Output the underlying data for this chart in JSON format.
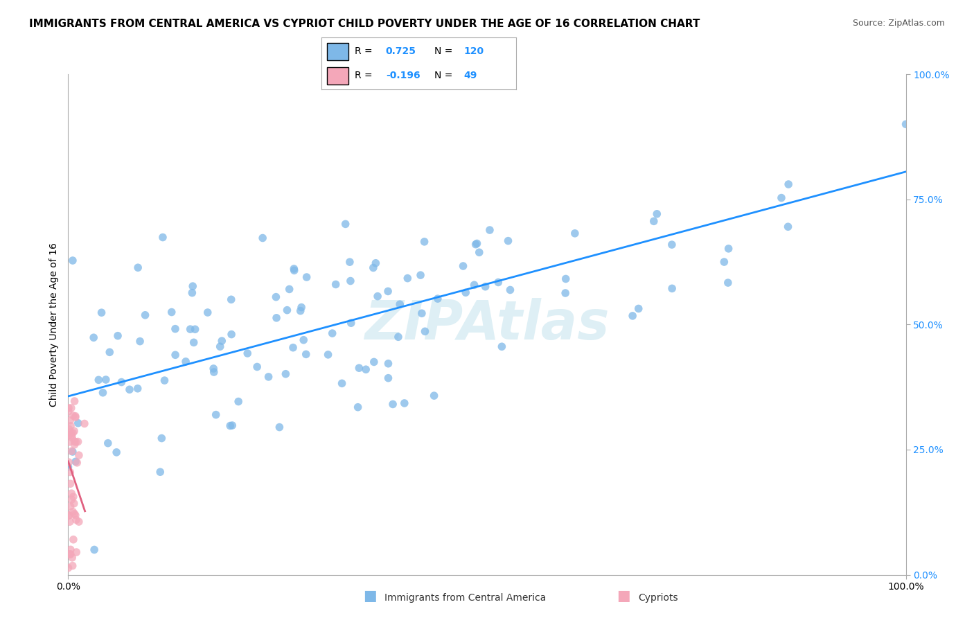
{
  "title": "IMMIGRANTS FROM CENTRAL AMERICA VS CYPRIOT CHILD POVERTY UNDER THE AGE OF 16 CORRELATION CHART",
  "source": "Source: ZipAtlas.com",
  "ylabel": "Child Poverty Under the Age of 16",
  "watermark": "ZIPAtlas",
  "blue_R": 0.725,
  "blue_N": 120,
  "pink_R": -0.196,
  "pink_N": 49,
  "blue_color": "#7EB8E8",
  "pink_color": "#F4A7B9",
  "blue_line_color": "#1E90FF",
  "pink_line_color": "#E06080",
  "background_color": "#FFFFFF",
  "grid_color": "#CCCCCC",
  "xlim": [
    0,
    1
  ],
  "ylim": [
    0,
    1
  ]
}
